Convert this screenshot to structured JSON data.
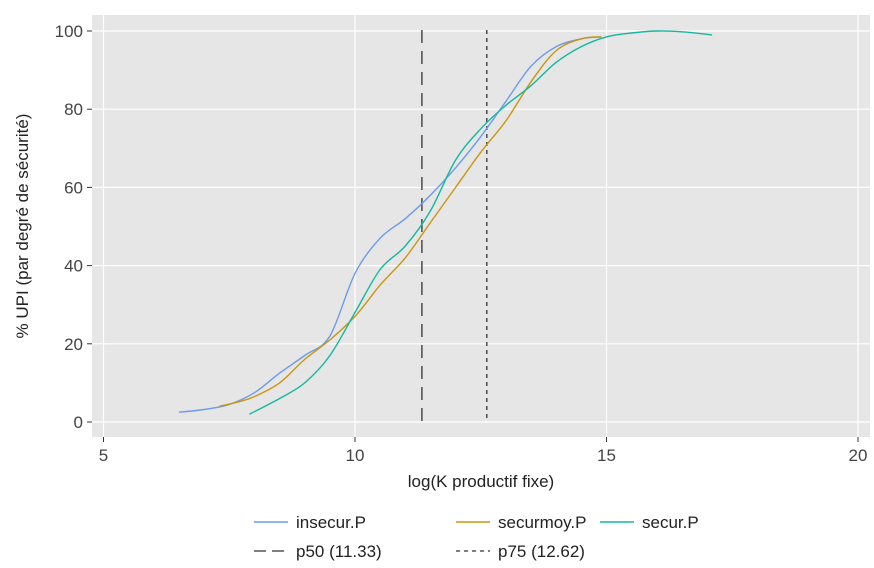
{
  "chart_data": {
    "type": "line",
    "xlabel": "log(K productif fixe)",
    "ylabel": "% UPI (par degré de sécurité)",
    "xlim": [
      5,
      20
    ],
    "ylim": [
      0,
      100
    ],
    "x_ticks": [
      5,
      10,
      15,
      20
    ],
    "y_ticks": [
      0,
      20,
      40,
      60,
      80,
      100
    ],
    "grid": true,
    "legend_position": "bottom",
    "series": [
      {
        "name": "insecur.P",
        "color": "#6a9bec",
        "points": [
          [
            6.5,
            2.5
          ],
          [
            7.0,
            3.2
          ],
          [
            7.5,
            4.5
          ],
          [
            8.0,
            7.5
          ],
          [
            8.5,
            12.5
          ],
          [
            9.0,
            17.0
          ],
          [
            9.5,
            22.0
          ],
          [
            10.0,
            38.0
          ],
          [
            10.5,
            47.0
          ],
          [
            11.0,
            52.0
          ],
          [
            11.5,
            58.0
          ],
          [
            12.0,
            65.0
          ],
          [
            12.5,
            73.0
          ],
          [
            13.0,
            82.0
          ],
          [
            13.5,
            91.0
          ],
          [
            14.0,
            96.0
          ],
          [
            14.5,
            98.0
          ],
          [
            14.9,
            98.5
          ]
        ]
      },
      {
        "name": "securmoy.P",
        "color": "#c9960e",
        "points": [
          [
            7.3,
            4.0
          ],
          [
            7.7,
            5.2
          ],
          [
            8.0,
            6.5
          ],
          [
            8.5,
            10.0
          ],
          [
            9.0,
            16.0
          ],
          [
            9.5,
            21.0
          ],
          [
            10.0,
            27.0
          ],
          [
            10.5,
            35.0
          ],
          [
            11.0,
            42.0
          ],
          [
            11.5,
            51.0
          ],
          [
            12.0,
            60.0
          ],
          [
            12.5,
            69.0
          ],
          [
            13.0,
            77.0
          ],
          [
            13.5,
            87.0
          ],
          [
            14.0,
            95.0
          ],
          [
            14.5,
            98.0
          ],
          [
            14.9,
            98.5
          ]
        ]
      },
      {
        "name": "secur.P",
        "color": "#14b8a0",
        "points": [
          [
            7.9,
            2.0
          ],
          [
            8.5,
            6.0
          ],
          [
            9.0,
            10.0
          ],
          [
            9.5,
            17.0
          ],
          [
            10.0,
            28.0
          ],
          [
            10.5,
            39.0
          ],
          [
            11.0,
            45.0
          ],
          [
            11.5,
            54.0
          ],
          [
            12.0,
            67.0
          ],
          [
            12.5,
            75.0
          ],
          [
            13.0,
            81.0
          ],
          [
            13.5,
            86.0
          ],
          [
            14.0,
            92.0
          ],
          [
            14.5,
            96.0
          ],
          [
            15.0,
            98.5
          ],
          [
            15.5,
            99.5
          ],
          [
            16.0,
            100.0
          ],
          [
            16.5,
            99.8
          ],
          [
            17.1,
            99.0
          ]
        ]
      }
    ],
    "reference_lines": [
      {
        "name": "p50 (11.33)",
        "x": 11.33,
        "color": "#555555",
        "style": "long-dash"
      },
      {
        "name": "p75 (12.62)",
        "x": 12.62,
        "color": "#555555",
        "style": "short-dash"
      }
    ]
  }
}
